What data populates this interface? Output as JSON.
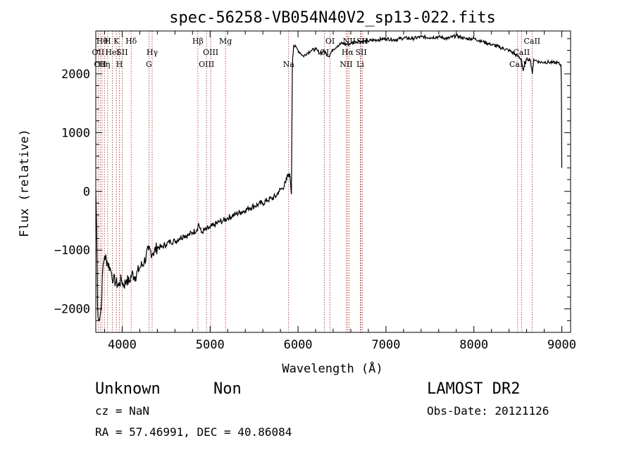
{
  "chart_data": {
    "type": "line",
    "title": "spec-56258-VB054N40V2_sp13-022.fits",
    "xlabel": "Wavelength (Å)",
    "ylabel": "Flux (relative)",
    "xlim": [
      3700,
      9100
    ],
    "ylim": [
      -2400,
      2730
    ],
    "xticks": [
      4000,
      5000,
      6000,
      7000,
      8000,
      9000
    ],
    "yticks": [
      -2000,
      -1000,
      0,
      1000,
      2000
    ],
    "grid": false,
    "series": [
      {
        "x": [
          3700,
          3710,
          3720,
          3740,
          3760,
          3780,
          3800,
          3830,
          3860,
          3880,
          3900,
          3930,
          3960,
          3990,
          4020,
          4050,
          4080,
          4110,
          4150,
          4200,
          4250,
          4300,
          4350,
          4400,
          4450,
          4500,
          4550,
          4600,
          4650,
          4700,
          4750,
          4800,
          4850,
          4870,
          4900,
          4950,
          5000,
          5050,
          5100,
          5150,
          5200,
          5250,
          5300,
          5350,
          5400,
          5450,
          5500,
          5550,
          5600,
          5650,
          5700,
          5750,
          5780,
          5820,
          5860,
          5890,
          5910,
          5925,
          5935,
          5940,
          5950,
          5980,
          6000,
          6030,
          6060,
          6100,
          6150,
          6200,
          6250,
          6300,
          6350,
          6400,
          6450,
          6500,
          6560,
          6600,
          6650,
          6700,
          6750,
          6800,
          6900,
          7000,
          7100,
          7200,
          7300,
          7400,
          7500,
          7600,
          7700,
          7800,
          7900,
          8000,
          8100,
          8200,
          8300,
          8400,
          8450,
          8500,
          8540,
          8560,
          8600,
          8640,
          8665,
          8680,
          8700,
          8750,
          8800,
          8850,
          8900,
          8950,
          8990,
          8995,
          9000
        ],
        "y": [
          0,
          -600,
          -2000,
          -2200,
          -2000,
          -1300,
          -1100,
          -1200,
          -1300,
          -1400,
          -1500,
          -1550,
          -1600,
          -1500,
          -1600,
          -1500,
          -1550,
          -1400,
          -1450,
          -1300,
          -1200,
          -1000,
          -1050,
          -950,
          -950,
          -900,
          -850,
          -850,
          -800,
          -750,
          -750,
          -700,
          -650,
          -550,
          -700,
          -650,
          -620,
          -570,
          -520,
          -500,
          -450,
          -420,
          -380,
          -350,
          -320,
          -280,
          -250,
          -220,
          -200,
          -150,
          -120,
          -80,
          0,
          50,
          150,
          300,
          250,
          -50,
          2100,
          2300,
          2480,
          2450,
          2400,
          2350,
          2300,
          2350,
          2400,
          2420,
          2350,
          2380,
          2300,
          2420,
          2480,
          2520,
          2500,
          2520,
          2550,
          2560,
          2550,
          2560,
          2580,
          2600,
          2580,
          2610,
          2600,
          2630,
          2620,
          2630,
          2600,
          2650,
          2600,
          2600,
          2550,
          2500,
          2450,
          2400,
          2350,
          2300,
          2250,
          2050,
          2250,
          2250,
          2000,
          2250,
          2230,
          2200,
          2200,
          2200,
          2190,
          2190,
          2150,
          1850,
          400
        ]
      }
    ],
    "lines": [
      {
        "wave": 3727,
        "label": "OII",
        "row": 2
      },
      {
        "wave": 3750,
        "label": "OII",
        "row": 3
      },
      {
        "wave": 3771,
        "label": "Hθ",
        "row": 1
      },
      {
        "wave": 3798,
        "label": "Hη",
        "row": 3
      },
      {
        "wave": 3835,
        "label": "H",
        "row": 1
      },
      {
        "wave": 3889,
        "label": "HeI",
        "row": 2
      },
      {
        "wave": 3934,
        "label": "K",
        "row": 1
      },
      {
        "wave": 3969,
        "label": "H",
        "row": 3
      },
      {
        "wave": 4000,
        "label": "SII",
        "row": 2
      },
      {
        "wave": 4102,
        "label": "Hδ",
        "row": 1
      },
      {
        "wave": 4304,
        "label": "G",
        "row": 3
      },
      {
        "wave": 4341,
        "label": "Hγ",
        "row": 2
      },
      {
        "wave": 4861,
        "label": "Hβ",
        "row": 1
      },
      {
        "wave": 4959,
        "label": "OIII",
        "row": 3
      },
      {
        "wave": 5007,
        "label": "OIII",
        "row": 2
      },
      {
        "wave": 5175,
        "label": "Mg",
        "row": 1
      },
      {
        "wave": 5893,
        "label": "Na",
        "row": 3
      },
      {
        "wave": 6300,
        "label": "OI",
        "row": 2
      },
      {
        "wave": 6364,
        "label": "OI",
        "row": 1
      },
      {
        "wave": 6548,
        "label": "NII",
        "row": 3
      },
      {
        "wave": 6563,
        "label": "Hα",
        "row": 2
      },
      {
        "wave": 6583,
        "label": "NII",
        "row": 1
      },
      {
        "wave": 6717,
        "label": "SII",
        "row": 2
      },
      {
        "wave": 6731,
        "label": "SII",
        "row": 1
      },
      {
        "wave": 6708,
        "label": "Li",
        "row": 3
      },
      {
        "wave": 8498,
        "label": "CaII",
        "row": 3
      },
      {
        "wave": 8542,
        "label": "CaII",
        "row": 2
      },
      {
        "wave": 8662,
        "label": "CaII",
        "row": 1
      }
    ]
  },
  "footer": {
    "object_class": "Unknown",
    "subclass": "Non",
    "survey": "LAMOST DR2",
    "redshift": "cz = NaN",
    "obs_date": "Obs-Date: 20121126",
    "coords": "RA =  57.46991, DEC =  40.86084"
  }
}
